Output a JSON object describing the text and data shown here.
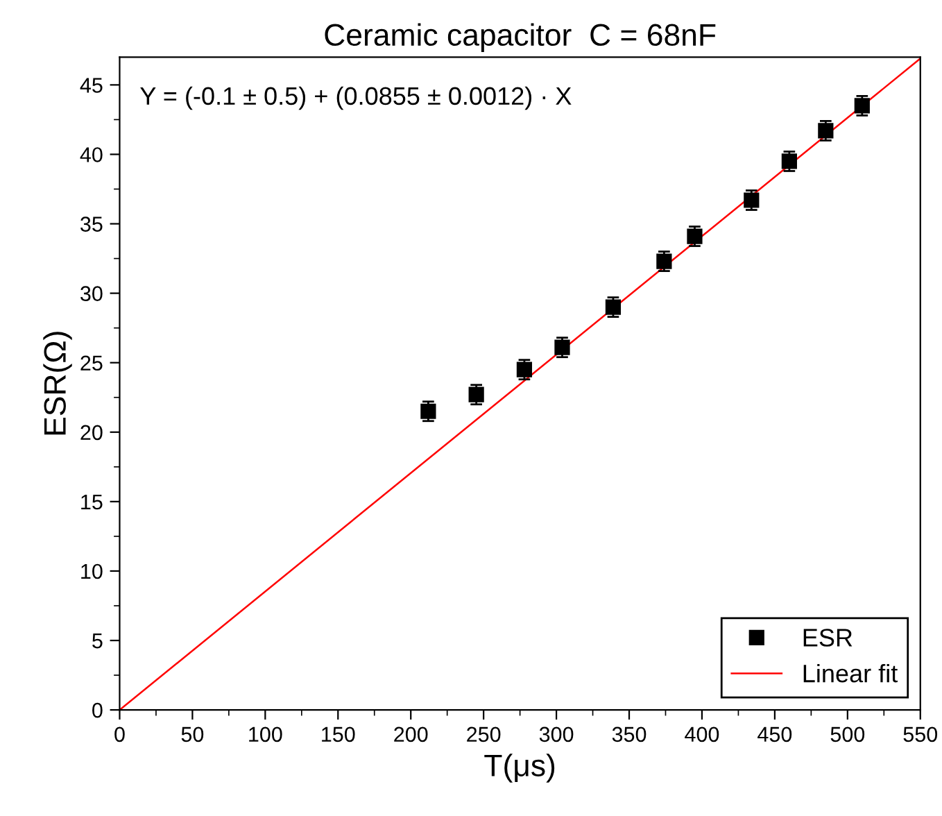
{
  "chart_data": {
    "type": "scatter",
    "title": "Ceramic capacitor  C = 68nF",
    "xlabel": "T(μs)",
    "ylabel": "ESR(Ω)",
    "annotations": [
      "Y = (-0.1 ± 0.5) + (0.0855 ± 0.0012) · X"
    ],
    "series": [
      {
        "name": "ESR",
        "color": "#000000",
        "marker": "square",
        "x": [
          212,
          245,
          278,
          304,
          339,
          374,
          395,
          434,
          460,
          485,
          510
        ],
        "values": [
          21.5,
          22.7,
          24.5,
          26.1,
          29.0,
          32.3,
          34.1,
          36.7,
          39.5,
          41.7,
          43.5
        ],
        "errors": [
          0.7,
          0.7,
          0.7,
          0.7,
          0.7,
          0.7,
          0.7,
          0.7,
          0.7,
          0.7,
          0.7
        ]
      },
      {
        "name": "Linear fit",
        "type": "line",
        "color": "#ff0000",
        "line_style": "solid",
        "x": [
          0,
          550
        ],
        "values": [
          0,
          46.9
        ]
      }
    ],
    "xlim": [
      0,
      550
    ],
    "ylim": [
      0,
      47
    ],
    "xticks": [
      0,
      50,
      100,
      150,
      200,
      250,
      300,
      350,
      400,
      450,
      500,
      550
    ],
    "yticks": [
      0,
      5,
      10,
      15,
      20,
      25,
      30,
      35,
      40,
      45
    ],
    "grid": false,
    "legend": "bottom right"
  }
}
